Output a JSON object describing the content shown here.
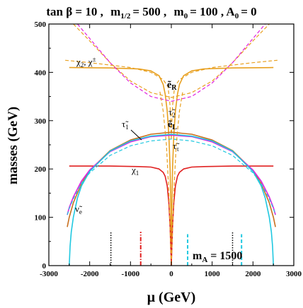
{
  "chart_data": {
    "type": "line",
    "title": "tan β = 10 ,  m_{1/2} = 500 ,  m_0 = 100 , A_0 = 0",
    "title_parts": {
      "tanb": "tan β = 10 ,",
      "m12_label": "m",
      "m12_sub": "1/2",
      "m12_val": "= 500 ,",
      "m0_label": "m",
      "m0_sub": "0",
      "m0_val": "= 100 , A",
      "a0_sub": "0",
      "a0_val": "= 0"
    },
    "xlabel": "μ (GeV)",
    "ylabel": "masses (GeV)",
    "xlim": [
      -3000,
      3000
    ],
    "ylim": [
      0,
      500
    ],
    "x_ticks": [
      -3000,
      -2000,
      -1000,
      0,
      1000,
      2000,
      3000
    ],
    "y_ticks": [
      0,
      100,
      200,
      300,
      400,
      500
    ],
    "x_tick_labels": [
      "-3000",
      "-2000",
      "-1000",
      "0",
      "1000",
      "2000",
      "3000"
    ],
    "y_tick_labels": [
      "0",
      "100",
      "200",
      "300",
      "400",
      "500"
    ],
    "grid": false,
    "legend": "none",
    "annotations": {
      "mA": "m",
      "mA_sub": "A",
      "mA_val": "= 1500",
      "chi2": "χ",
      "chi2_sub": "2",
      "chi2_rest": ", χ",
      "chi2_sup": "±",
      "eR": "ẽ",
      "eR_sub": "R",
      "tau2": "τ̃",
      "tau2_sub": "2",
      "eL": "ẽ",
      "eL_sub": "L",
      "tau1": "τ̃",
      "tau1_sub": "1",
      "tau": "τ̃",
      "tau_sub": "τ",
      "chi1": "χ",
      "chi1_sub": "1",
      "nue": "ν̃",
      "nue_sub": "e"
    },
    "series": [
      {
        "name": "χ2, χ±",
        "style": "solid",
        "color": "#e8a020",
        "x": [
          -2500,
          -1500,
          -800,
          -500,
          -300,
          -200,
          -150,
          -100,
          -60,
          -30,
          -10,
          0,
          10,
          30,
          60,
          100,
          150,
          200,
          300,
          500,
          800,
          1500,
          2500
        ],
        "y": [
          410,
          409,
          407,
          403,
          393,
          375,
          355,
          320,
          270,
          200,
          110,
          0,
          110,
          200,
          270,
          320,
          355,
          375,
          393,
          403,
          407,
          409,
          410
        ]
      },
      {
        "name": "χ1",
        "style": "solid",
        "color": "#e02020",
        "x": [
          -2500,
          -1500,
          -800,
          -500,
          -300,
          -200,
          -150,
          -100,
          -60,
          -30,
          -10,
          0,
          10,
          30,
          60,
          100,
          150,
          200,
          300,
          500,
          800,
          1500,
          2500
        ],
        "y": [
          206,
          206,
          205,
          204,
          200,
          193,
          185,
          165,
          130,
          80,
          30,
          0,
          30,
          80,
          130,
          165,
          185,
          193,
          200,
          204,
          205,
          206,
          206
        ]
      },
      {
        "name": "ẽ_R",
        "style": "dashed",
        "color": "#e8a020",
        "x": [
          -2400,
          -2000,
          -1500,
          -1000,
          -500,
          0,
          500,
          1000,
          1500,
          2000,
          2400
        ],
        "y": [
          500,
          465,
          420,
          382,
          358,
          348,
          358,
          382,
          420,
          465,
          500
        ]
      },
      {
        "name": "upper magenta",
        "style": "dashed",
        "color": "#e020e0",
        "x": [
          -2300,
          -2000,
          -1500,
          -1000,
          -500,
          0,
          500,
          1000,
          1500,
          2000,
          2300
        ],
        "y": [
          500,
          470,
          420,
          378,
          350,
          340,
          350,
          378,
          420,
          470,
          500
        ]
      },
      {
        "name": "τ̃_2",
        "style": "dashed",
        "color": "#e8a020",
        "x": [
          -2600,
          -2000,
          -1500,
          -1000,
          -500,
          -200,
          -80,
          -30,
          -10,
          0,
          10,
          30,
          80,
          200,
          500,
          1000,
          1500,
          2000,
          2600
        ],
        "y": [
          425,
          420,
          415,
          410,
          400,
          385,
          370,
          330,
          290,
          260,
          290,
          330,
          370,
          385,
          400,
          410,
          415,
          420,
          425
        ]
      },
      {
        "name": "ẽ_L",
        "style": "solid",
        "color": "#c87020",
        "x": [
          -2550,
          -2500,
          -2400,
          -2200,
          -2000,
          -1500,
          -1000,
          -500,
          0,
          500,
          1000,
          1500,
          2000,
          2200,
          2400,
          2500,
          2550
        ],
        "y": [
          80,
          100,
          130,
          170,
          197,
          238,
          260,
          272,
          276,
          272,
          260,
          238,
          197,
          170,
          130,
          100,
          80
        ]
      },
      {
        "name": "τ̃_1",
        "style": "solid",
        "color": "#e020e0",
        "x": [
          -2550,
          -2500,
          -2400,
          -2200,
          -2000,
          -1500,
          -1000,
          -500,
          0,
          500,
          1000,
          1500,
          2000,
          2200,
          2400,
          2500,
          2550
        ],
        "y": [
          105,
          120,
          142,
          175,
          198,
          236,
          256,
          267,
          270,
          267,
          256,
          236,
          198,
          175,
          142,
          120,
          105
        ]
      },
      {
        "name": "τ̃_τ",
        "style": "dashed",
        "color": "#20c8e0",
        "x": [
          -2550,
          -2500,
          -2400,
          -2200,
          -2000,
          -1500,
          -1000,
          -500,
          0,
          500,
          1000,
          1500,
          2000,
          2200,
          2400,
          2500,
          2550
        ],
        "y": [
          105,
          118,
          138,
          170,
          192,
          228,
          248,
          258,
          262,
          258,
          248,
          228,
          192,
          170,
          138,
          118,
          105
        ]
      },
      {
        "name": "ν̃_e",
        "style": "solid",
        "color": "#20c8e0",
        "x": [
          -2500,
          -2480,
          -2450,
          -2400,
          -2300,
          -2200,
          -2000,
          -1500,
          -1000,
          -500,
          0,
          500,
          1000,
          1500,
          2000,
          2200,
          2300,
          2400,
          2450,
          2480,
          2500
        ],
        "y": [
          0,
          40,
          70,
          100,
          140,
          165,
          195,
          237,
          258,
          268,
          272,
          268,
          258,
          237,
          195,
          165,
          140,
          100,
          70,
          40,
          0
        ]
      },
      {
        "name": "central dashed",
        "style": "dashed",
        "color": "#e8a020",
        "x": [
          -280,
          -200,
          -120,
          -60,
          -20,
          0,
          20,
          60,
          120,
          200,
          280
        ],
        "y": [
          360,
          320,
          250,
          150,
          50,
          0,
          50,
          150,
          250,
          320,
          360
        ]
      }
    ],
    "vertical_markers": [
      {
        "x": -1480,
        "y": [
          0,
          70
        ],
        "color": "#000000",
        "style": "dotted"
      },
      {
        "x": -750,
        "y": [
          0,
          70
        ],
        "color": "#e02020",
        "style": "dashdot"
      },
      {
        "x": 400,
        "y": [
          0,
          65
        ],
        "color": "#20c8e0",
        "style": "dashed"
      },
      {
        "x": 1500,
        "y": [
          0,
          70
        ],
        "color": "#000000",
        "style": "dotted"
      },
      {
        "x": 1720,
        "y": [
          0,
          65
        ],
        "color": "#20c8e0",
        "style": "dashed"
      }
    ]
  }
}
